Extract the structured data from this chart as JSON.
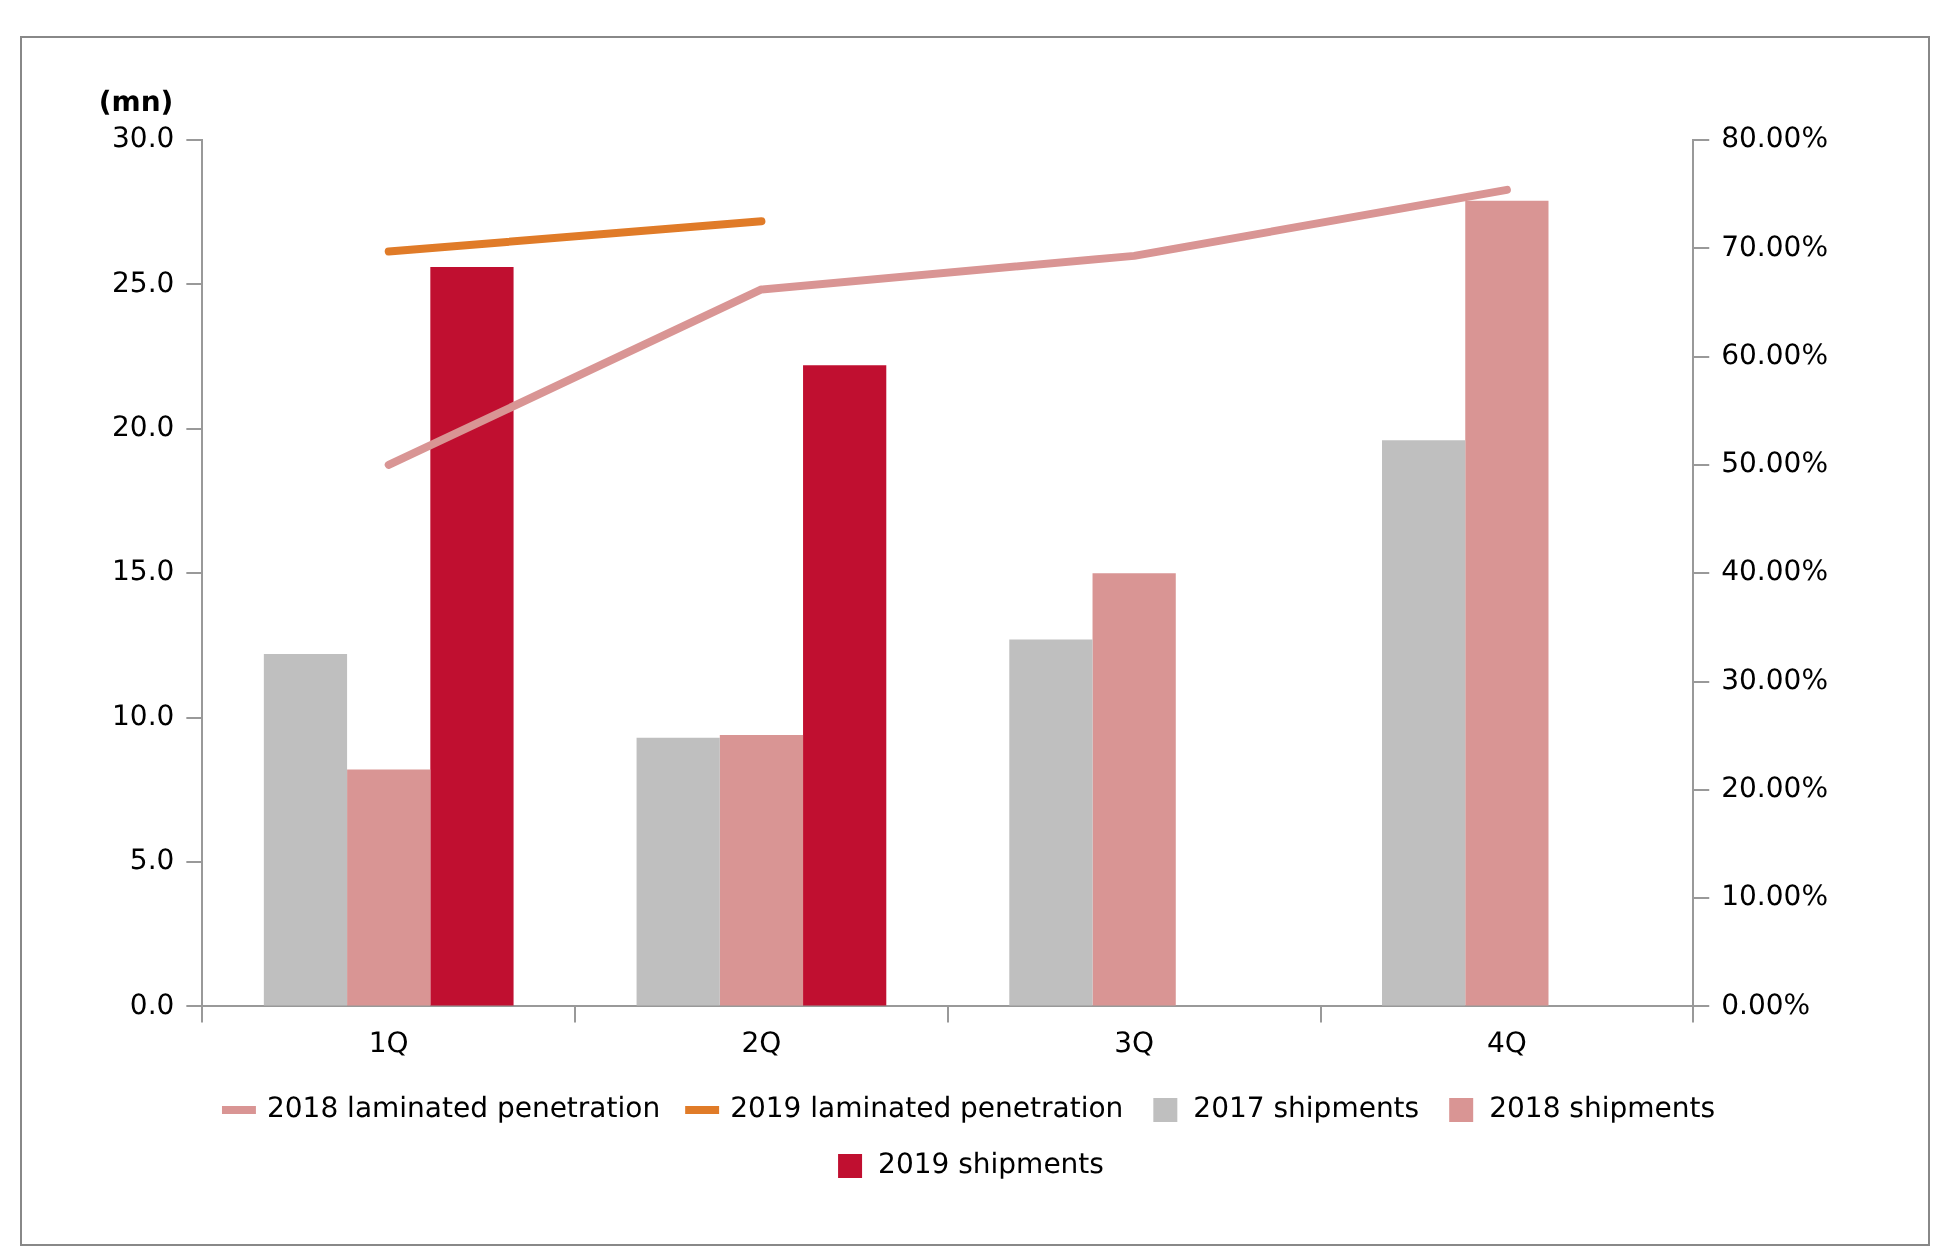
{
  "chart_data": {
    "type": "bar",
    "ylabel": "(mn)",
    "categories": [
      "1Q",
      "2Q",
      "3Q",
      "4Q"
    ],
    "series": [
      {
        "name": "2017 shipments",
        "color": "#bfbfbf",
        "values": [
          12.2,
          9.3,
          12.7,
          19.6
        ]
      },
      {
        "name": "2018 shipments",
        "color": "#d99594",
        "values": [
          8.2,
          9.4,
          15.0,
          27.9
        ]
      },
      {
        "name": "2019 shipments",
        "color": "#c00f30",
        "values": [
          25.6,
          22.2,
          null,
          null
        ]
      },
      {
        "name": "2018 laminated penetration",
        "type": "line",
        "axis": "y2",
        "color": "#d99594",
        "values": [
          50.0,
          66.2,
          69.3,
          75.4
        ]
      },
      {
        "name": "2019 laminated penetration",
        "type": "line",
        "axis": "y2",
        "color": "#e07b28",
        "values": [
          69.7,
          72.5,
          null,
          null
        ]
      }
    ],
    "ylim": [
      0,
      30
    ],
    "yticks": [
      {
        "value": 0,
        "label": "0.0"
      },
      {
        "value": 5,
        "label": "5.0"
      },
      {
        "value": 10,
        "label": "10.0"
      },
      {
        "value": 15,
        "label": "15.0"
      },
      {
        "value": 20,
        "label": "20.0"
      },
      {
        "value": 25,
        "label": "25.0"
      },
      {
        "value": 30,
        "label": "30.0"
      }
    ],
    "y2lim": [
      0,
      80
    ],
    "y2ticks": [
      {
        "value": 0,
        "label": "0.00%"
      },
      {
        "value": 10,
        "label": "10.00%"
      },
      {
        "value": 20,
        "label": "20.00%"
      },
      {
        "value": 30,
        "label": "30.00%"
      },
      {
        "value": 40,
        "label": "40.00%"
      },
      {
        "value": 50,
        "label": "50.00%"
      },
      {
        "value": 60,
        "label": "60.00%"
      },
      {
        "value": 70,
        "label": "70.00%"
      },
      {
        "value": 80,
        "label": "80.00%"
      }
    ],
    "grid": false,
    "legend": "bottom",
    "marker": "none",
    "line_style": "solid"
  }
}
